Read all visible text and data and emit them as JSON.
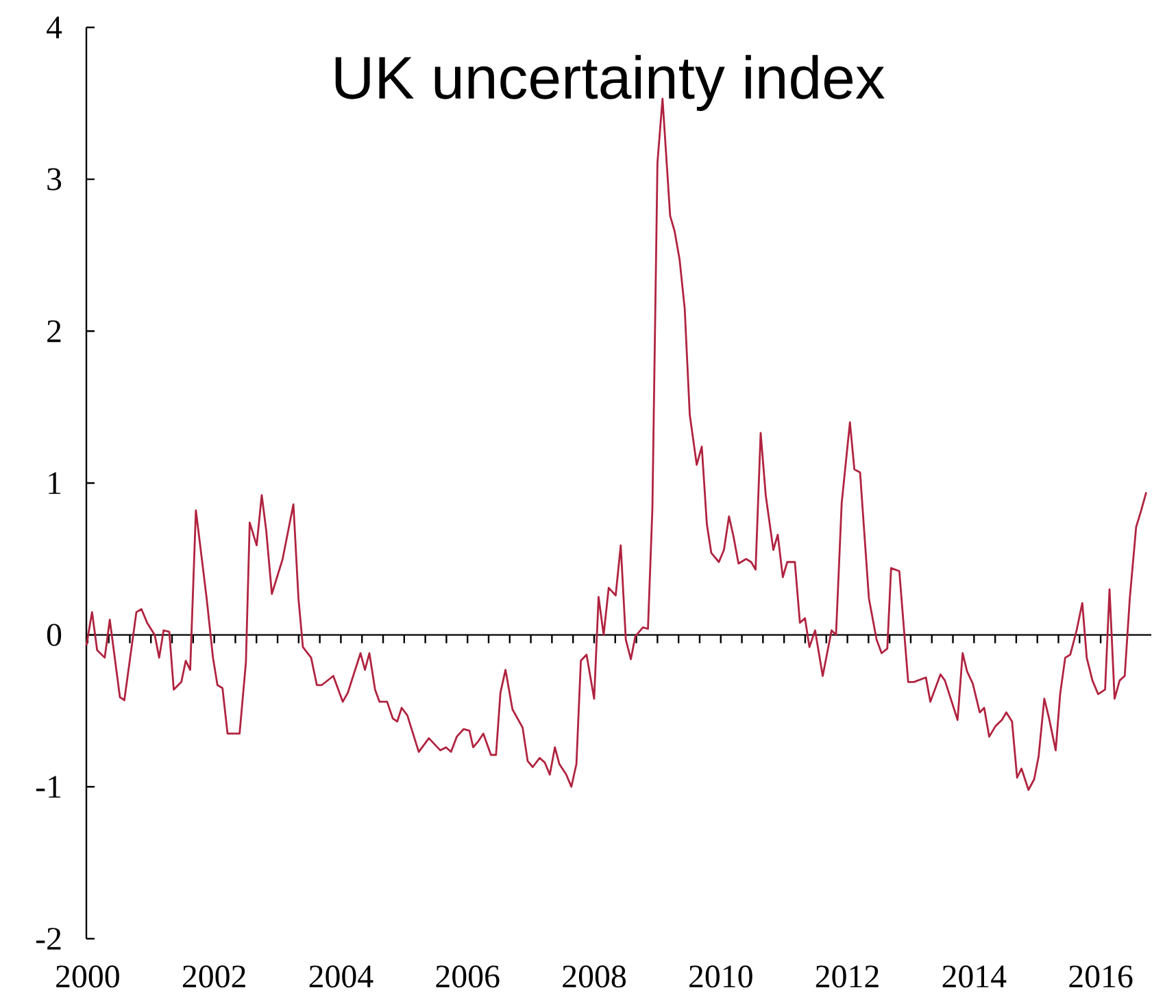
{
  "chart_data": {
    "type": "line",
    "title": "UK uncertainty index",
    "x": [
      1999.98,
      2000.07,
      2000.15,
      2000.27,
      2000.35,
      2000.51,
      2000.58,
      2000.77,
      2000.85,
      2000.94,
      2001.06,
      2001.13,
      2001.2,
      2001.29,
      2001.36,
      2001.48,
      2001.55,
      2001.62,
      2001.71,
      2001.88,
      2001.98,
      2002.05,
      2002.13,
      2002.21,
      2002.4,
      2002.5,
      2002.56,
      2002.67,
      2002.75,
      2002.82,
      2002.91,
      2003.08,
      2003.25,
      2003.33,
      2003.4,
      2003.53,
      2003.62,
      2003.7,
      2003.88,
      2004.03,
      2004.11,
      2004.31,
      2004.38,
      2004.45,
      2004.54,
      2004.61,
      2004.73,
      2004.82,
      2004.89,
      2004.96,
      2005.05,
      2005.23,
      2005.39,
      2005.57,
      2005.66,
      2005.74,
      2005.83,
      2005.94,
      2006.03,
      2006.09,
      2006.17,
      2006.25,
      2006.37,
      2006.45,
      2006.52,
      2006.6,
      2006.71,
      2006.87,
      2006.95,
      2007.03,
      2007.14,
      2007.22,
      2007.3,
      2007.38,
      2007.45,
      2007.56,
      2007.64,
      2007.72,
      2007.79,
      2007.88,
      2008.0,
      2008.07,
      2008.15,
      2008.23,
      2008.34,
      2008.42,
      2008.5,
      2008.58,
      2008.65,
      2008.77,
      2008.85,
      2008.92,
      2009.0,
      2009.08,
      2009.2,
      2009.27,
      2009.35,
      2009.43,
      2009.51,
      2009.62,
      2009.7,
      2009.78,
      2009.85,
      2009.97,
      2010.05,
      2010.13,
      2010.2,
      2010.28,
      2010.4,
      2010.48,
      2010.55,
      2010.63,
      2010.71,
      2010.83,
      2010.9,
      2010.98,
      2011.05,
      2011.17,
      2011.25,
      2011.33,
      2011.4,
      2011.49,
      2011.61,
      2011.75,
      2011.82,
      2011.91,
      2012.04,
      2012.11,
      2012.2,
      2012.34,
      2012.46,
      2012.54,
      2012.63,
      2012.69,
      2012.82,
      2012.96,
      2013.05,
      2013.24,
      2013.31,
      2013.47,
      2013.54,
      2013.74,
      2013.82,
      2013.89,
      2013.98,
      2014.09,
      2014.16,
      2014.24,
      2014.34,
      2014.44,
      2014.51,
      2014.6,
      2014.68,
      2014.75,
      2014.86,
      2014.95,
      2015.02,
      2015.11,
      2015.18,
      2015.29,
      2015.36,
      2015.44,
      2015.52,
      2015.62,
      2015.71,
      2015.78,
      2015.87,
      2015.96,
      2016.07,
      2016.14,
      2016.22,
      2016.3,
      2016.38,
      2016.46,
      2016.56,
      2016.64,
      2016.72
    ],
    "values": [
      -0.07,
      0.15,
      -0.1,
      -0.15,
      0.1,
      -0.41,
      -0.43,
      0.15,
      0.17,
      0.08,
      0.0,
      -0.15,
      0.03,
      0.02,
      -0.36,
      -0.31,
      -0.17,
      -0.23,
      0.82,
      0.24,
      -0.15,
      -0.33,
      -0.35,
      -0.65,
      -0.65,
      -0.18,
      0.74,
      0.59,
      0.92,
      0.69,
      0.27,
      0.5,
      0.86,
      0.24,
      -0.08,
      -0.15,
      -0.33,
      -0.33,
      -0.27,
      -0.44,
      -0.38,
      -0.12,
      -0.23,
      -0.12,
      -0.36,
      -0.44,
      -0.44,
      -0.55,
      -0.57,
      -0.48,
      -0.53,
      -0.77,
      -0.68,
      -0.76,
      -0.74,
      -0.77,
      -0.67,
      -0.62,
      -0.63,
      -0.74,
      -0.7,
      -0.65,
      -0.79,
      -0.79,
      -0.38,
      -0.23,
      -0.49,
      -0.61,
      -0.83,
      -0.87,
      -0.81,
      -0.84,
      -0.92,
      -0.74,
      -0.85,
      -0.92,
      -1.0,
      -0.85,
      -0.17,
      -0.13,
      -0.42,
      0.25,
      0.0,
      0.31,
      0.26,
      0.59,
      -0.03,
      -0.16,
      -0.01,
      0.05,
      0.04,
      0.83,
      3.11,
      3.53,
      2.76,
      2.66,
      2.47,
      2.15,
      1.45,
      1.12,
      1.24,
      0.73,
      0.54,
      0.48,
      0.56,
      0.78,
      0.65,
      0.47,
      0.5,
      0.48,
      0.43,
      1.33,
      0.92,
      0.56,
      0.66,
      0.38,
      0.48,
      0.48,
      0.08,
      0.11,
      -0.08,
      0.03,
      -0.27,
      0.03,
      0.0,
      0.87,
      1.4,
      1.09,
      1.07,
      0.24,
      -0.03,
      -0.12,
      -0.09,
      0.44,
      0.42,
      -0.31,
      -0.31,
      -0.28,
      -0.44,
      -0.26,
      -0.3,
      -0.56,
      -0.12,
      -0.24,
      -0.32,
      -0.51,
      -0.48,
      -0.67,
      -0.6,
      -0.56,
      -0.51,
      -0.57,
      -0.94,
      -0.88,
      -1.02,
      -0.95,
      -0.8,
      -0.42,
      -0.54,
      -0.76,
      -0.39,
      -0.15,
      -0.13,
      0.03,
      0.21,
      -0.15,
      -0.3,
      -0.39,
      -0.36,
      0.3,
      -0.42,
      -0.3,
      -0.27,
      0.24,
      0.71,
      0.82,
      0.94
    ],
    "color": "#b0233f",
    "xlim": [
      1999.98,
      2016.8
    ],
    "ylim": [
      -2,
      4
    ],
    "xticks": [
      2000,
      2002,
      2004,
      2006,
      2008,
      2010,
      2012,
      2014,
      2016
    ],
    "yticks": [
      -2,
      -1,
      0,
      1,
      2,
      3,
      4
    ],
    "line_style": "solid",
    "marker": "none"
  }
}
